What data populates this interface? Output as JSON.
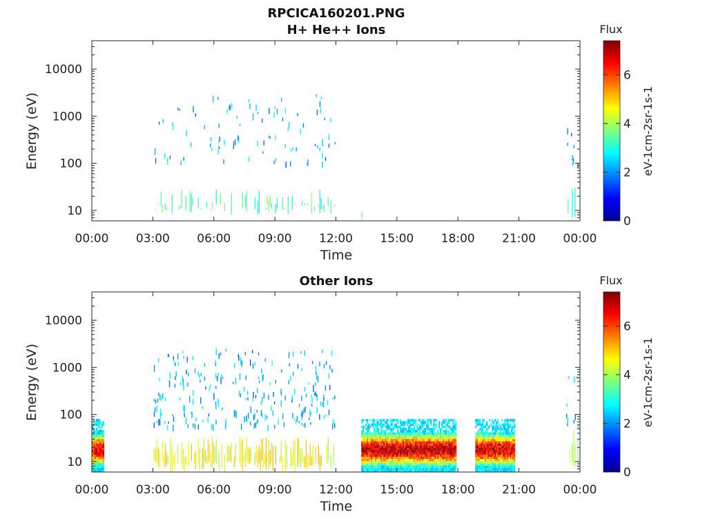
{
  "chart_data": [
    {
      "type": "heatmap",
      "suptitle": "RPCICA160201.PNG",
      "title": "H+ He++ Ions",
      "xlabel": "Time",
      "ylabel": "Energy (eV)",
      "x_ticks": [
        "00:00",
        "03:00",
        "06:00",
        "09:00",
        "12:00",
        "15:00",
        "18:00",
        "21:00",
        "00:00"
      ],
      "x_range_hours": [
        0,
        24
      ],
      "y_scale": "log",
      "y_ticks": [
        10,
        100,
        1000,
        10000
      ],
      "y_tick_labels": [
        "10",
        "100",
        "1000",
        "10000"
      ],
      "ylim": [
        6,
        40000
      ],
      "colorbar": {
        "title": "Flux",
        "label": "eV-1cm-2sr-1s-1",
        "range": [
          0,
          7.4
        ],
        "ticks": [
          0,
          2,
          4,
          6
        ],
        "colormap": "jet"
      },
      "low_energy_band": [
        {
          "start": 3.05,
          "end": 12.0,
          "e_min": 8,
          "e_max": 30,
          "flux": 3.3,
          "density": 0.35
        },
        {
          "start": 13.25,
          "end": 13.3,
          "e_min": 6,
          "e_max": 18,
          "flux": 3.0,
          "density": 1.0
        },
        {
          "start": 23.4,
          "end": 23.85,
          "e_min": 6,
          "e_max": 30,
          "flux": 3.3,
          "density": 0.5
        }
      ],
      "scattered_counts": [
        {
          "start": 3.0,
          "end": 12.0,
          "e_min": 100,
          "e_max": 3000,
          "flux": 2.2,
          "count": 95
        },
        {
          "start": 23.3,
          "end": 23.95,
          "e_min": 100,
          "e_max": 1000,
          "flux": 2.2,
          "count": 8
        }
      ]
    },
    {
      "type": "heatmap",
      "title": "Other Ions",
      "xlabel": "Time",
      "ylabel": "Energy (eV)",
      "x_ticks": [
        "00:00",
        "03:00",
        "06:00",
        "09:00",
        "12:00",
        "15:00",
        "18:00",
        "21:00",
        "00:00"
      ],
      "x_range_hours": [
        0,
        24
      ],
      "y_scale": "log",
      "y_ticks": [
        10,
        100,
        1000,
        10000
      ],
      "y_tick_labels": [
        "10",
        "100",
        "1000",
        "10000"
      ],
      "ylim": [
        6,
        40000
      ],
      "colorbar": {
        "title": "Flux",
        "label": "eV-1cm-2sr-1s-1",
        "range": [
          0,
          7.4
        ],
        "ticks": [
          0,
          2,
          4,
          6
        ],
        "colormap": "jet"
      },
      "intense_blocks": [
        {
          "start": 0.0,
          "end": 0.55,
          "e_min": 6,
          "e_max": 80,
          "peak_energy": 18,
          "peak_flux": 6.6
        },
        {
          "start": 13.25,
          "end": 17.9,
          "e_min": 6,
          "e_max": 80,
          "peak_energy": 18,
          "peak_flux": 7.0
        },
        {
          "start": 18.85,
          "end": 20.8,
          "e_min": 6,
          "e_max": 80,
          "peak_energy": 18,
          "peak_flux": 6.8
        }
      ],
      "low_energy_band": [
        {
          "start": 3.05,
          "end": 12.0,
          "e_min": 6,
          "e_max": 35,
          "flux": 4.6,
          "density": 0.75
        },
        {
          "start": 23.4,
          "end": 23.9,
          "e_min": 6,
          "e_max": 50,
          "flux": 4.2,
          "density": 0.6
        }
      ],
      "scattered_counts": [
        {
          "start": 3.0,
          "end": 12.0,
          "e_min": 60,
          "e_max": 2500,
          "flux": 2.3,
          "count": 260
        },
        {
          "start": 23.3,
          "end": 23.95,
          "e_min": 60,
          "e_max": 800,
          "flux": 2.3,
          "count": 10
        }
      ]
    }
  ]
}
